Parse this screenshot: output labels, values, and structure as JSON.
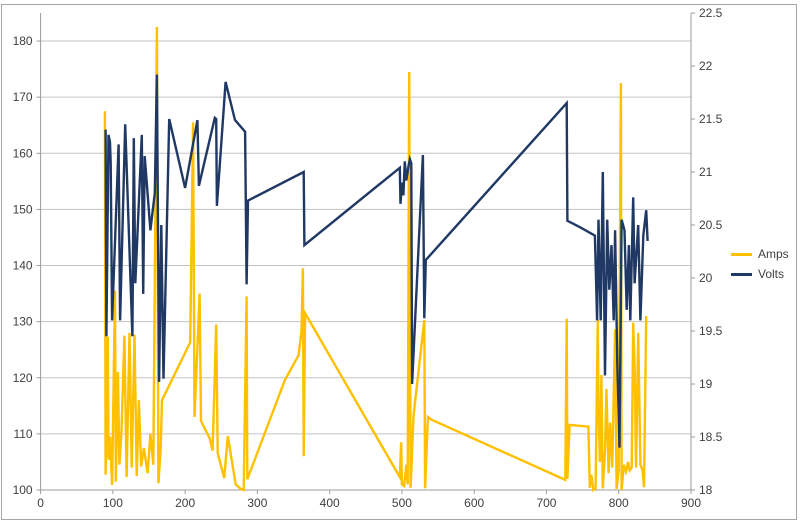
{
  "chart_data": {
    "type": "line",
    "title": "",
    "grid": "horizontal",
    "legend": {
      "position": "right",
      "entries": [
        {
          "label": "Amps",
          "color": "#FFC000"
        },
        {
          "label": "Volts",
          "color": "#1F3864"
        }
      ]
    },
    "x_axis": {
      "label": "",
      "min": 0,
      "max": 900,
      "tick_step": 100,
      "ticks": [
        0,
        100,
        200,
        300,
        400,
        500,
        600,
        700,
        800,
        900
      ]
    },
    "y_axis_left": {
      "label": "",
      "series": "Amps",
      "min": 100,
      "max": 185,
      "tick_step": 10,
      "ticks": [
        100,
        110,
        120,
        130,
        140,
        150,
        160,
        170,
        180
      ]
    },
    "y_axis_right": {
      "label": "",
      "series": "Volts",
      "min": 18,
      "max": 22.5,
      "tick_step": 0.5,
      "ticks": [
        18,
        18.5,
        19,
        19.5,
        20,
        20.5,
        21,
        21.5,
        22,
        22.5
      ]
    },
    "series": [
      {
        "name": "Amps",
        "axis": "left",
        "color": "#FFC000",
        "points": [
          [
            89,
            167.5
          ],
          [
            90,
            102.7
          ],
          [
            93,
            127.3
          ],
          [
            94,
            105.4
          ],
          [
            96,
            109.5
          ],
          [
            99,
            100.9
          ],
          [
            103,
            135.5
          ],
          [
            104,
            101.5
          ],
          [
            107,
            121
          ],
          [
            109,
            104.5
          ],
          [
            112,
            110.5
          ],
          [
            116,
            127.5
          ],
          [
            119,
            102.3
          ],
          [
            123,
            128
          ],
          [
            126,
            104
          ],
          [
            130,
            127.7
          ],
          [
            133,
            102.5
          ],
          [
            136,
            116
          ],
          [
            139,
            104.2
          ],
          [
            143,
            107.5
          ],
          [
            148,
            103
          ],
          [
            152,
            110
          ],
          [
            156,
            104.5
          ],
          [
            161,
            182.5
          ],
          [
            163,
            101.2
          ],
          [
            166,
            107
          ],
          [
            168,
            116
          ],
          [
            207,
            126.3
          ],
          [
            211,
            165.5
          ],
          [
            213,
            113
          ],
          [
            220,
            135
          ],
          [
            222,
            112.3
          ],
          [
            234,
            109.2
          ],
          [
            238,
            107
          ],
          [
            243,
            129.5
          ],
          [
            245,
            106.6
          ],
          [
            254,
            102.1
          ],
          [
            259,
            109.6
          ],
          [
            270,
            101
          ],
          [
            277,
            100.2
          ],
          [
            281,
            100
          ],
          [
            285,
            134.5
          ],
          [
            286,
            101.9
          ],
          [
            338,
            119.6
          ],
          [
            357,
            124
          ],
          [
            361,
            128.3
          ],
          [
            363,
            139.5
          ],
          [
            364,
            106
          ],
          [
            366,
            131.5
          ],
          [
            497,
            102.3
          ],
          [
            499,
            108.5
          ],
          [
            500,
            101
          ],
          [
            503,
            100.7
          ],
          [
            506,
            104.5
          ],
          [
            508,
            101
          ],
          [
            510,
            174.5
          ],
          [
            512,
            100.4
          ],
          [
            516,
            113.2
          ],
          [
            531,
            130.3
          ],
          [
            532,
            100.3
          ],
          [
            536,
            113
          ],
          [
            540,
            112.6
          ],
          [
            726,
            101.8
          ],
          [
            728,
            130.5
          ],
          [
            729,
            102
          ],
          [
            732,
            111.6
          ],
          [
            758,
            111.3
          ],
          [
            760,
            100.4
          ],
          [
            762,
            102.7
          ],
          [
            765,
            100
          ],
          [
            768,
            100.3
          ],
          [
            771,
            130.3
          ],
          [
            772,
            115
          ],
          [
            774,
            105
          ],
          [
            776,
            120.5
          ],
          [
            778,
            100.3
          ],
          [
            781,
            107
          ],
          [
            783,
            118
          ],
          [
            786,
            103
          ],
          [
            788,
            112
          ],
          [
            791,
            104
          ],
          [
            795,
            128.6
          ],
          [
            797,
            100.2
          ],
          [
            800,
            103.5
          ],
          [
            803,
            172.5
          ],
          [
            804,
            100
          ],
          [
            807,
            104.5
          ],
          [
            810,
            103.3
          ],
          [
            813,
            105
          ],
          [
            815,
            103.5
          ],
          [
            818,
            104
          ],
          [
            820,
            129.8
          ],
          [
            822,
            122
          ],
          [
            824,
            104
          ],
          [
            827,
            128
          ],
          [
            830,
            104.5
          ],
          [
            833,
            103.5
          ],
          [
            835,
            100.5
          ],
          [
            838,
            131
          ]
        ]
      },
      {
        "name": "Volts",
        "axis": "right",
        "color": "#1F3864",
        "points": [
          [
            90,
            21.4
          ],
          [
            91,
            19.45
          ],
          [
            94,
            21.35
          ],
          [
            96,
            21.28
          ],
          [
            97,
            21.08
          ],
          [
            99,
            19.6
          ],
          [
            108,
            21.26
          ],
          [
            110,
            19.6
          ],
          [
            117,
            21.45
          ],
          [
            127,
            19.45
          ],
          [
            129,
            21.32
          ],
          [
            131,
            19.95
          ],
          [
            140,
            21.35
          ],
          [
            142,
            19.85
          ],
          [
            144,
            21.15
          ],
          [
            152,
            20.45
          ],
          [
            158,
            20.8
          ],
          [
            161,
            21.92
          ],
          [
            164,
            19.02
          ],
          [
            167,
            20.5
          ],
          [
            170,
            19.05
          ],
          [
            178,
            21.5
          ],
          [
            200,
            20.85
          ],
          [
            217,
            21.49
          ],
          [
            219,
            20.87
          ],
          [
            241,
            21.51
          ],
          [
            243,
            21.5
          ],
          [
            244,
            20.68
          ],
          [
            256,
            21.85
          ],
          [
            269,
            21.49
          ],
          [
            283,
            21.38
          ],
          [
            285,
            19.94
          ],
          [
            287,
            20.73
          ],
          [
            364,
            21
          ],
          [
            365,
            20.31
          ],
          [
            497,
            21.04
          ],
          [
            498,
            20.7
          ],
          [
            500,
            20.9
          ],
          [
            502,
            20.78
          ],
          [
            504,
            21.1
          ],
          [
            506,
            20.92
          ],
          [
            509,
            21.05
          ],
          [
            511,
            21.12
          ],
          [
            513,
            21.08
          ],
          [
            514,
            19
          ],
          [
            529,
            21.16
          ],
          [
            531,
            19.62
          ],
          [
            533,
            20.17
          ],
          [
            728,
            21.65
          ],
          [
            729,
            20.54
          ],
          [
            746,
            20.48
          ],
          [
            767,
            20.4
          ],
          [
            770,
            19.6
          ],
          [
            772,
            20.55
          ],
          [
            775,
            19.6
          ],
          [
            778,
            21
          ],
          [
            781,
            19.08
          ],
          [
            784,
            20.55
          ],
          [
            787,
            19.89
          ],
          [
            790,
            20.31
          ],
          [
            793,
            19.6
          ],
          [
            795,
            20.45
          ],
          [
            798,
            19.2
          ],
          [
            801,
            18.4
          ],
          [
            804,
            20.55
          ],
          [
            808,
            20.45
          ],
          [
            811,
            19.7
          ],
          [
            814,
            20.31
          ],
          [
            816,
            19.6
          ],
          [
            820,
            20.76
          ],
          [
            822,
            19.95
          ],
          [
            827,
            20.5
          ],
          [
            830,
            19.6
          ],
          [
            834,
            20.4
          ],
          [
            838,
            20.64
          ],
          [
            840,
            20.35
          ]
        ]
      }
    ],
    "style": {
      "gridline_color": "#c3c3c3",
      "axis_color": "#9b9b9b",
      "tick_label_color": "#404040",
      "background": "#ffffff",
      "line_width": 2.4
    }
  }
}
